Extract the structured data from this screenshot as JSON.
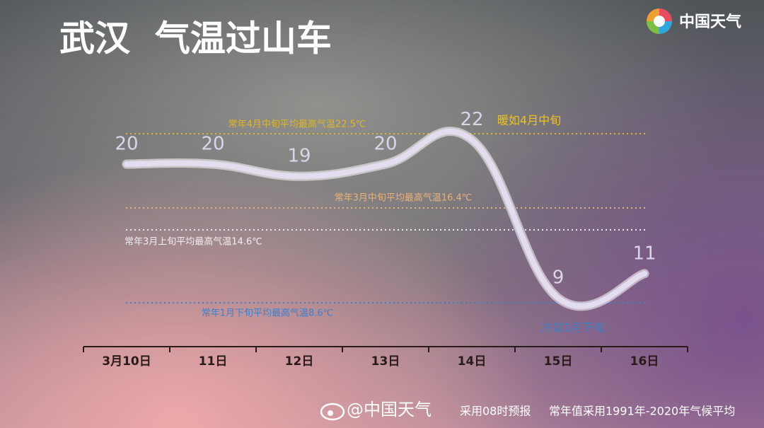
{
  "header": {
    "title": "武汉  气温过山车",
    "logo": "中国天气"
  },
  "chart_data": {
    "type": "line",
    "categories": [
      "3月10日",
      "11日",
      "12日",
      "13日",
      "14日",
      "15日",
      "16日"
    ],
    "values": [
      20,
      20,
      19,
      20,
      22,
      9,
      11
    ],
    "color": "#e4dcef",
    "ylim": [
      5,
      25
    ],
    "reference_lines": [
      {
        "value": 22.5,
        "label": "常年4月中旬平均最高气温22.5℃",
        "color": "#e0b62a"
      },
      {
        "value": 16.4,
        "label": "常年3月中旬平均最高气温16.4℃",
        "color": "#e9b27a"
      },
      {
        "value": 14.6,
        "label": "常年3月上旬平均最高气温14.6℃",
        "color": "#f2eef2"
      },
      {
        "value": 8.6,
        "label": "常年1月下旬平均最高气温8.6℃",
        "color": "#3d7fc9"
      }
    ],
    "annotations": [
      {
        "text": "暖如4月中旬",
        "color": "#f1c21a"
      },
      {
        "text": "冷如1月下旬",
        "color": "#3d7fc9"
      }
    ]
  },
  "footer": {
    "source": "@中国天气",
    "note1": "采用08时预报",
    "note2": "常年值采用1991年-2020年气候平均"
  }
}
